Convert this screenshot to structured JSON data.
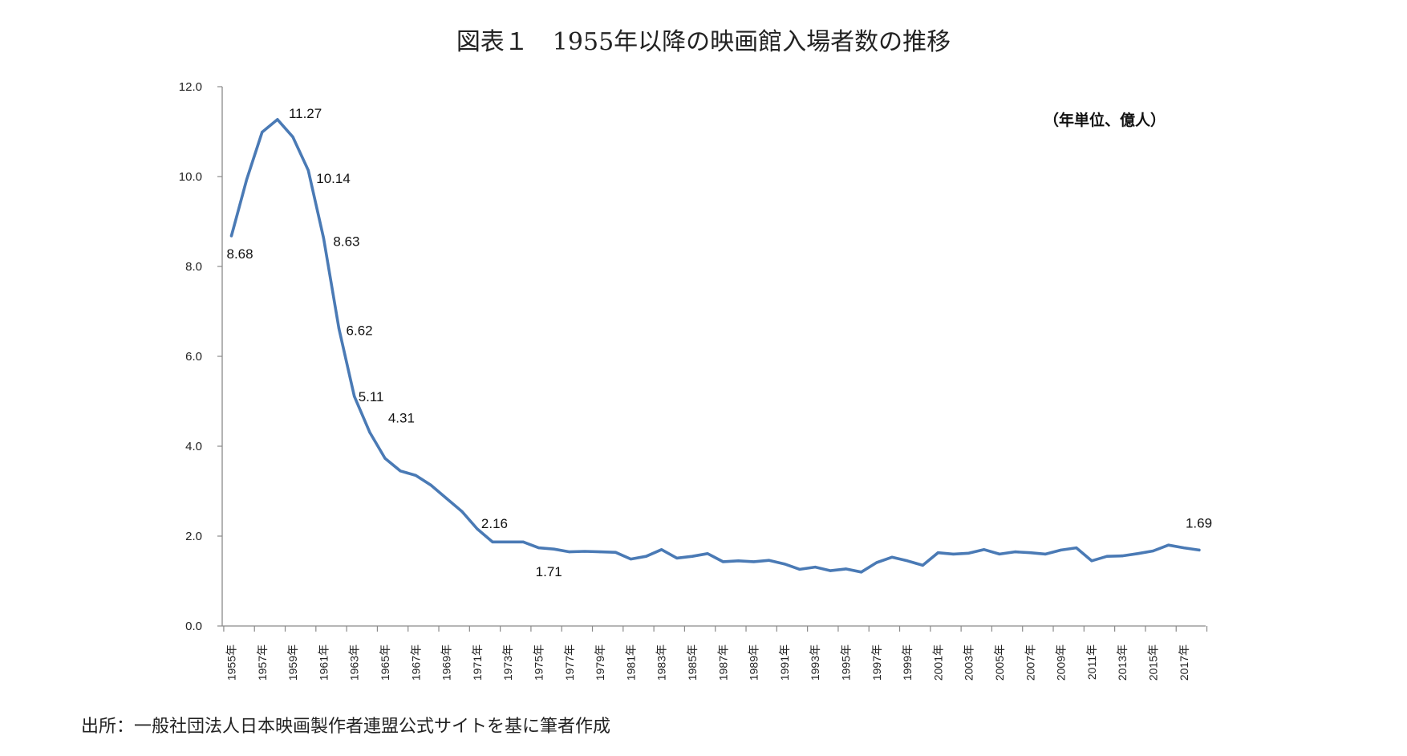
{
  "chart_data": {
    "type": "line",
    "title": "図表１　1955年以降の映画館入場者数の推移",
    "unit_note": "（年単位、億人）",
    "source": "出所：一般社団法人日本映画製作者連盟公式サイトを基に筆者作成",
    "xlabel": "",
    "ylabel": "",
    "ylim": [
      0,
      12
    ],
    "yticks": [
      "0.0",
      "2.0",
      "4.0",
      "6.0",
      "8.0",
      "10.0",
      "12.0"
    ],
    "grid": false,
    "x": [
      1955,
      1956,
      1957,
      1958,
      1959,
      1960,
      1961,
      1962,
      1963,
      1964,
      1965,
      1966,
      1967,
      1968,
      1969,
      1970,
      1971,
      1972,
      1973,
      1974,
      1975,
      1976,
      1977,
      1978,
      1979,
      1980,
      1981,
      1982,
      1983,
      1984,
      1985,
      1986,
      1987,
      1988,
      1989,
      1990,
      1991,
      1992,
      1993,
      1994,
      1995,
      1996,
      1997,
      1998,
      1999,
      2000,
      2001,
      2002,
      2003,
      2004,
      2005,
      2006,
      2007,
      2008,
      2009,
      2010,
      2011,
      2012,
      2013,
      2014,
      2015,
      2016,
      2017,
      2018
    ],
    "x_tick_labels": [
      "1955年",
      "1957年",
      "1959年",
      "1961年",
      "1963年",
      "1965年",
      "1967年",
      "1969年",
      "1971年",
      "1973年",
      "1975年",
      "1977年",
      "1979年",
      "1981年",
      "1983年",
      "1985年",
      "1987年",
      "1989年",
      "1991年",
      "1993年",
      "1995年",
      "1997年",
      "1999年",
      "2001年",
      "2003年",
      "2005年",
      "2007年",
      "2009年",
      "2011年",
      "2013年",
      "2015年",
      "2017年"
    ],
    "series": [
      {
        "color": "#4a7ab5",
        "values": [
          8.68,
          9.94,
          10.99,
          11.27,
          10.88,
          10.14,
          8.63,
          6.62,
          5.11,
          4.31,
          3.73,
          3.45,
          3.35,
          3.13,
          2.84,
          2.55,
          2.16,
          1.87,
          1.87,
          1.87,
          1.74,
          1.71,
          1.65,
          1.66,
          1.65,
          1.64,
          1.49,
          1.55,
          1.7,
          1.51,
          1.55,
          1.61,
          1.43,
          1.45,
          1.43,
          1.46,
          1.38,
          1.26,
          1.31,
          1.23,
          1.27,
          1.2,
          1.41,
          1.53,
          1.45,
          1.35,
          1.63,
          1.6,
          1.62,
          1.7,
          1.6,
          1.65,
          1.63,
          1.6,
          1.69,
          1.74,
          1.45,
          1.55,
          1.56,
          1.61,
          1.67,
          1.8,
          1.74,
          1.69
        ]
      }
    ],
    "data_labels": [
      {
        "year": 1955,
        "text": "8.68"
      },
      {
        "year": 1958,
        "text": "11.27"
      },
      {
        "year": 1960,
        "text": "10.14"
      },
      {
        "year": 1961,
        "text": "8.63"
      },
      {
        "year": 1962,
        "text": "6.62"
      },
      {
        "year": 1963,
        "text": "5.11"
      },
      {
        "year": 1964,
        "text": "4.31"
      },
      {
        "year": 1971,
        "text": "2.16"
      },
      {
        "year": 1976,
        "text": "1.71"
      },
      {
        "year": 2018,
        "text": "1.69"
      }
    ]
  }
}
